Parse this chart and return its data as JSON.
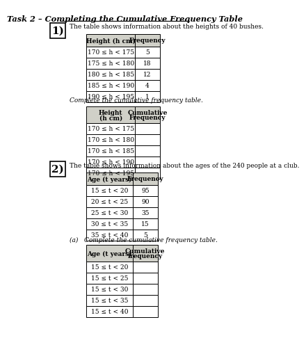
{
  "title": "Task 2 – Completing the Cumulative Frequency Table",
  "section1_label": "1)",
  "section1_intro": "The table shows information about the heights of 40 bushes.",
  "table1_headers": [
    "Height (h cm)",
    "Frequency"
  ],
  "table1_rows": [
    [
      "170 ≤ h < 175",
      "5"
    ],
    [
      "175 ≤ h < 180",
      "18"
    ],
    [
      "180 ≤ h < 185",
      "12"
    ],
    [
      "185 ≤ h < 190",
      "4"
    ],
    [
      "190 ≤ h < 195",
      "1"
    ]
  ],
  "table2_instruction": "Complete the cumulative frequency table.",
  "table2_headers": [
    "Height\n(h cm)",
    "Cumulative\nFrequency"
  ],
  "table2_rows": [
    [
      "170 ≤ h < 175",
      ""
    ],
    [
      "170 ≤ h < 180",
      ""
    ],
    [
      "170 ≤ h < 185",
      ""
    ],
    [
      "170 ≤ h < 190",
      ""
    ],
    [
      "170 ≤ h < 195",
      ""
    ]
  ],
  "section2_label": "2)",
  "section2_intro": "The table shows information about the ages of the 240 people at a club.",
  "table3_headers": [
    "Age (t years)",
    "Frequency"
  ],
  "table3_rows": [
    [
      "15 ≤ t < 20",
      "95"
    ],
    [
      "20 ≤ t < 25",
      "90"
    ],
    [
      "25 ≤ t < 30",
      "35"
    ],
    [
      "30 ≤ t < 35",
      "15"
    ],
    [
      "35 ≤ t < 40",
      "5"
    ]
  ],
  "table4_instruction": "(a)   Complete the cumulative frequency table.",
  "table4_headers": [
    "Age (t years)",
    "Cumulative\nfrequency"
  ],
  "table4_rows": [
    [
      "15 ≤ t < 20",
      ""
    ],
    [
      "15 ≤ t < 25",
      ""
    ],
    [
      "15 ≤ t < 30",
      ""
    ],
    [
      "15 ≤ t < 35",
      ""
    ],
    [
      "15 ≤ t < 40",
      ""
    ]
  ]
}
